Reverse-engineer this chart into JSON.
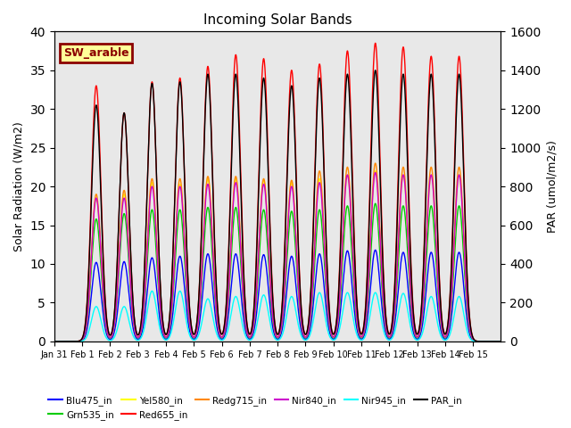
{
  "title": "Incoming Solar Bands",
  "ylabel_left": "Solar Radiation (W/m2)",
  "ylabel_right": "PAR (umol/m2/s)",
  "ylim_left": [
    0,
    40
  ],
  "ylim_right": [
    0,
    1600
  ],
  "background_color": "#e8e8e8",
  "legend_box_label": "SW_arable",
  "legend_box_color": "#ffff99",
  "legend_box_edge": "#8b0000",
  "legend_box_text": "#8b0000",
  "series_names": [
    "Blu475_in",
    "Grn535_in",
    "Yel580_in",
    "Red655_in",
    "Redg715_in",
    "Nir840_in",
    "Nir945_in",
    "PAR_in"
  ],
  "colors": {
    "Blu475_in": "#0000ff",
    "Grn535_in": "#00cc00",
    "Yel580_in": "#ffff00",
    "Red655_in": "#ff0000",
    "Redg715_in": "#ff8800",
    "Nir840_in": "#cc00cc",
    "Nir945_in": "#00ffff",
    "PAR_in": "#000000"
  },
  "n_days": 16,
  "peak_heights": {
    "Blu475_in": [
      0,
      10.2,
      10.3,
      10.8,
      11.0,
      11.3,
      11.3,
      11.2,
      11.0,
      11.3,
      11.7,
      11.8,
      11.5,
      11.5,
      11.5,
      0
    ],
    "Grn535_in": [
      0,
      15.8,
      16.5,
      17.0,
      17.0,
      17.3,
      17.3,
      17.0,
      16.8,
      17.0,
      17.5,
      17.8,
      17.5,
      17.5,
      17.5,
      0
    ],
    "Yel580_in": [
      0,
      18.5,
      19.0,
      20.5,
      20.3,
      21.0,
      21.0,
      20.8,
      20.5,
      21.0,
      21.5,
      22.0,
      21.5,
      21.5,
      21.5,
      0
    ],
    "Red655_in": [
      0,
      33.0,
      29.5,
      33.5,
      34.0,
      35.5,
      37.0,
      36.5,
      35.0,
      35.8,
      37.5,
      38.5,
      38.0,
      36.8,
      36.8,
      0
    ],
    "Redg715_in": [
      0,
      19.0,
      19.5,
      21.0,
      21.0,
      21.3,
      21.3,
      21.0,
      20.8,
      22.0,
      22.5,
      23.0,
      22.5,
      22.5,
      22.5,
      0
    ],
    "Nir840_in": [
      0,
      18.5,
      18.5,
      20.0,
      20.0,
      20.3,
      20.5,
      20.3,
      20.0,
      20.5,
      21.5,
      21.8,
      21.5,
      21.5,
      21.5,
      0
    ],
    "Nir945_in": [
      0,
      4.5,
      4.5,
      6.5,
      6.5,
      5.5,
      5.8,
      6.0,
      5.8,
      6.3,
      6.3,
      6.3,
      6.2,
      5.8,
      5.8,
      0
    ],
    "PAR_in": [
      0,
      30.5,
      29.5,
      33.3,
      33.5,
      34.5,
      34.5,
      34.0,
      33.0,
      34.0,
      34.5,
      35.0,
      34.5,
      34.5,
      34.5,
      0
    ]
  },
  "tick_labels": [
    "Jan 31",
    "Feb 1",
    "Feb 2",
    "Feb 3",
    "Feb 4",
    "Feb 5",
    "Feb 6",
    "Feb 7",
    "Feb 8",
    "Feb 9",
    "Feb 10",
    "Feb 11",
    "Feb 12",
    "Feb 13",
    "Feb 14",
    "Feb 15"
  ],
  "yticks_left": [
    0,
    5,
    10,
    15,
    20,
    25,
    30,
    35,
    40
  ],
  "yticks_right": [
    0,
    200,
    400,
    600,
    800,
    1000,
    1200,
    1400,
    1600
  ]
}
